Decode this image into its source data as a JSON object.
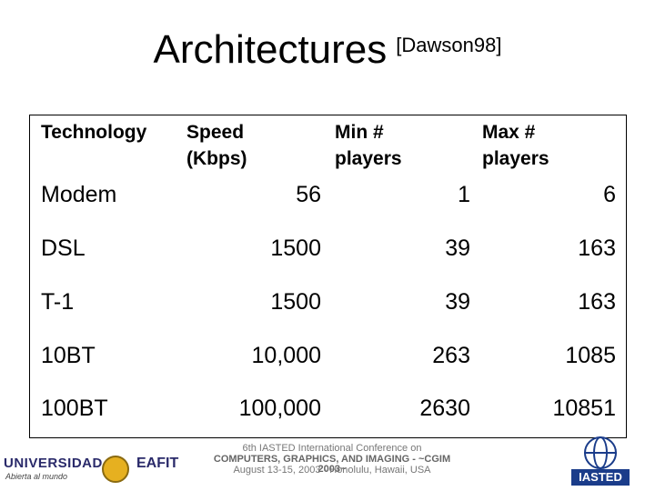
{
  "title": {
    "main": "Architectures",
    "ref": "[Dawson98]"
  },
  "table": {
    "headers": [
      "Technology",
      "Speed (Kbps)",
      "Min # players",
      "Max # players"
    ],
    "rows": [
      [
        "Modem",
        "56",
        "1",
        "6"
      ],
      [
        "DSL",
        "1500",
        "39",
        "163"
      ],
      [
        "T-1",
        "1500",
        "39",
        "163"
      ],
      [
        "10BT",
        "10,000",
        "263",
        "1085"
      ],
      [
        "100BT",
        "100,000",
        "2630",
        "10851"
      ]
    ]
  },
  "footer": {
    "university": "UNIVERSIDAD",
    "university_tagline": "Abierta al mundo",
    "eafit": "EAFIT",
    "conference_line1": "6th IASTED International Conference on",
    "conference_line2": "COMPUTERS, GRAPHICS, AND IMAGING - ~CGIM 2003~",
    "conference_line3": "August 13-15, 2003 - Honolulu, Hawaii, USA",
    "iasted": "IASTED"
  }
}
